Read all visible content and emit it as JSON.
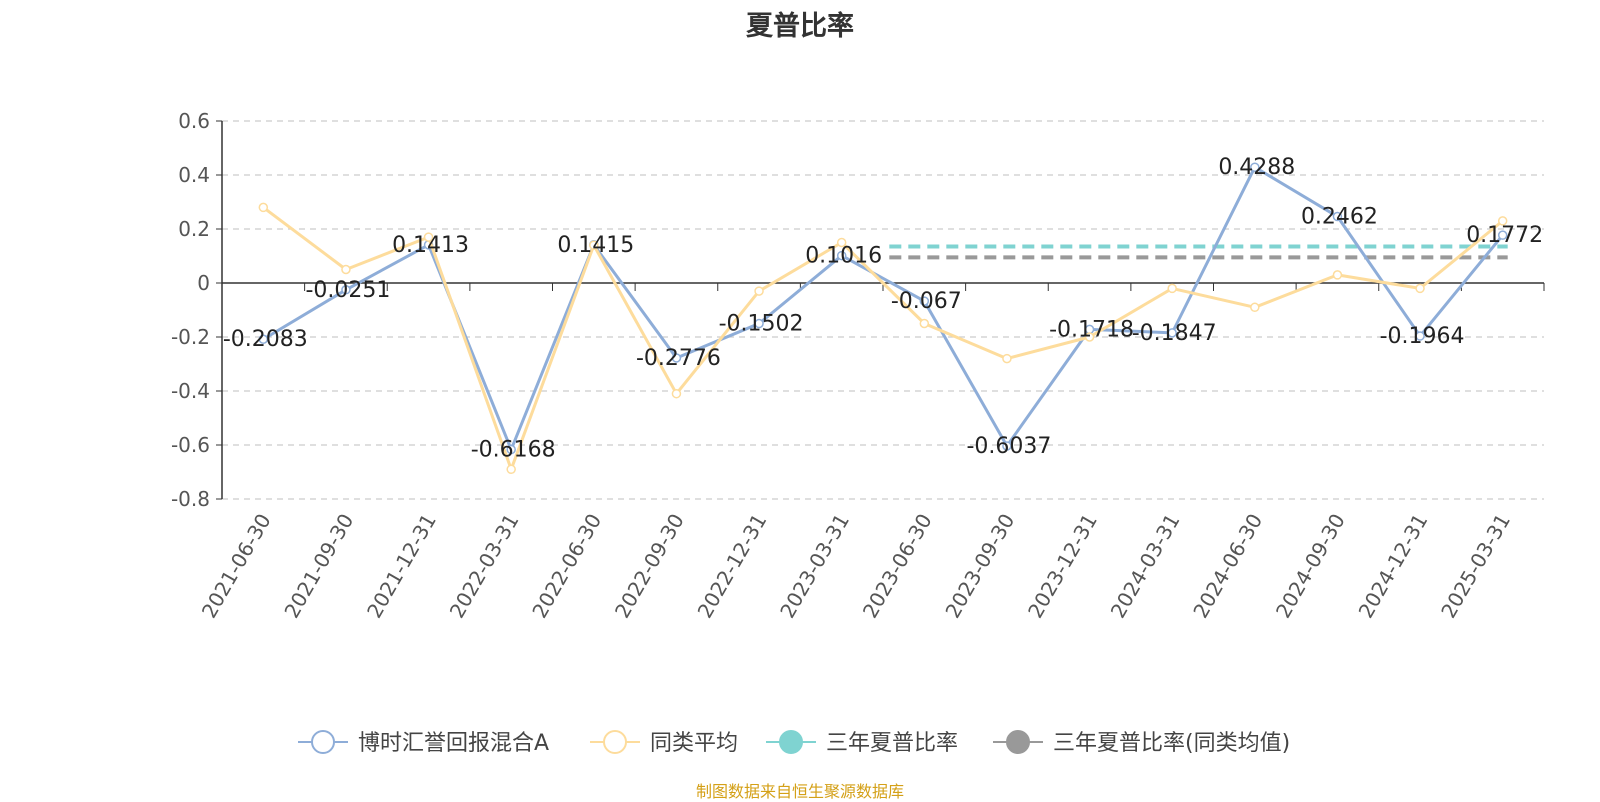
{
  "chart_data": {
    "type": "line",
    "title": "夏普比率",
    "categories": [
      "2021-06-30",
      "2021-09-30",
      "2021-12-31",
      "2022-03-31",
      "2022-06-30",
      "2022-09-30",
      "2022-12-31",
      "2023-03-31",
      "2023-06-30",
      "2023-09-30",
      "2023-12-31",
      "2024-03-31",
      "2024-06-30",
      "2024-09-30",
      "2024-12-31",
      "2025-03-31"
    ],
    "series": [
      {
        "name": "博时汇誉回报混合A",
        "color": "#8eadd8",
        "values": [
          -0.2083,
          -0.0251,
          0.1413,
          -0.6168,
          0.1415,
          -0.2776,
          -0.1502,
          0.1016,
          -0.067,
          -0.6037,
          -0.1718,
          -0.1847,
          0.4288,
          0.2462,
          -0.1964,
          0.1772
        ],
        "labels": [
          "-0.2083",
          "-0.0251",
          "0.1413",
          "-0.6168",
          "0.1415",
          "-0.2776",
          "-0.1502",
          "0.1016",
          "-0.067",
          "-0.6037",
          "-0.1718",
          "-0.1847",
          "0.4288",
          "0.2462",
          "-0.1964",
          "0.1772"
        ]
      },
      {
        "name": "同类平均",
        "color": "#fddc9c",
        "values": [
          0.28,
          0.05,
          0.17,
          -0.69,
          0.14,
          -0.41,
          -0.03,
          0.15,
          -0.15,
          -0.28,
          -0.2,
          -0.02,
          -0.09,
          0.03,
          -0.02,
          0.23
        ]
      }
    ],
    "reference_lines": [
      {
        "name": "三年夏普比率",
        "color": "#7fd3d1",
        "value": 0.135,
        "from": "2023-06-30",
        "to": "2025-03-31",
        "dashed": true
      },
      {
        "name": "三年夏普比率(同类均值)",
        "color": "#999999",
        "value": 0.095,
        "from": "2023-06-30",
        "to": "2025-03-31",
        "dashed": true
      }
    ],
    "ylim": [
      -0.8,
      0.6
    ],
    "yticks": [
      0.6,
      0.4,
      0.2,
      0,
      -0.2,
      -0.4,
      -0.6,
      -0.8
    ],
    "ytick_labels": [
      "0.6",
      "0.4",
      "0.2",
      "0",
      "-0.2",
      "-0.4",
      "-0.6",
      "-0.8"
    ],
    "grid": true,
    "legend_position": "bottom-center",
    "xlabel": "",
    "ylabel": ""
  },
  "source_text": "制图数据来自恒生聚源数据库"
}
